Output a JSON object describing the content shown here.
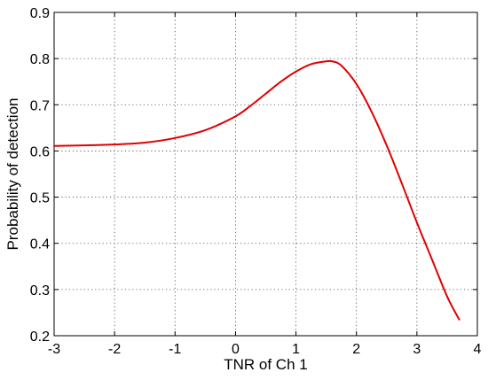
{
  "chart_data": {
    "type": "line",
    "title": "",
    "xlabel": "TNR of Ch 1",
    "ylabel": "Probability of detection",
    "xlim": [
      -3,
      4
    ],
    "ylim": [
      0.2,
      0.9
    ],
    "xticks": [
      "-3",
      "-2",
      "-1",
      "0",
      "1",
      "2",
      "3",
      "4"
    ],
    "yticks": [
      "0.2",
      "0.3",
      "0.4",
      "0.5",
      "0.6",
      "0.7",
      "0.8",
      "0.9"
    ],
    "grid": true,
    "series": [
      {
        "color": "#e00000",
        "x": [
          -3.0,
          -2.5,
          -2.0,
          -1.5,
          -1.0,
          -0.5,
          0.0,
          0.25,
          0.5,
          0.75,
          1.0,
          1.25,
          1.5,
          1.6,
          1.75,
          2.0,
          2.25,
          2.5,
          2.75,
          3.0,
          3.25,
          3.5,
          3.7
        ],
        "y": [
          0.611,
          0.612,
          0.614,
          0.618,
          0.628,
          0.645,
          0.675,
          0.698,
          0.724,
          0.75,
          0.772,
          0.788,
          0.794,
          0.794,
          0.785,
          0.745,
          0.685,
          0.612,
          0.53,
          0.445,
          0.365,
          0.285,
          0.235
        ]
      }
    ]
  }
}
